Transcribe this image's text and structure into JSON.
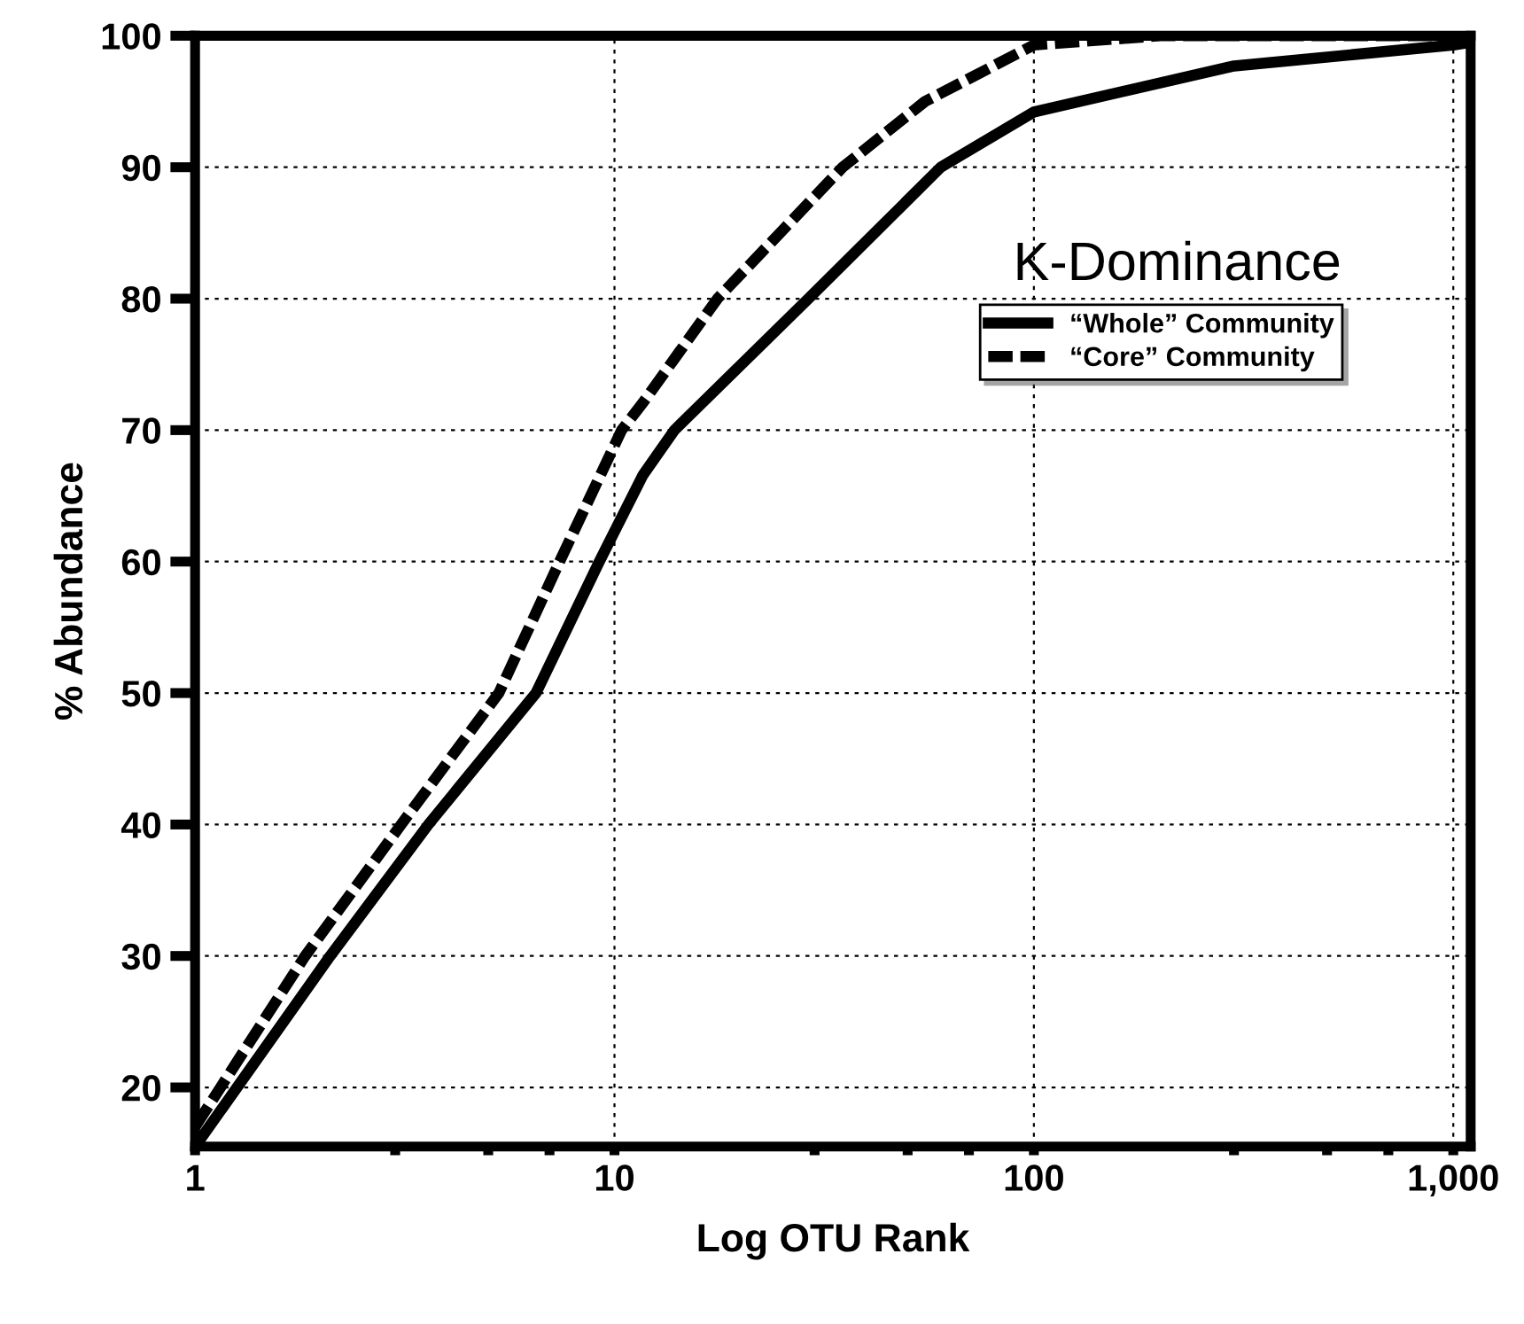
{
  "chart_data": {
    "type": "line",
    "title": "K-Dominance",
    "xlabel": "Log OTU Rank",
    "ylabel": "% Abundance",
    "log": "x",
    "xlim": [
      1,
      1100
    ],
    "ylim": [
      15.5,
      100
    ],
    "xticks": [
      1,
      {
        "value": 3,
        "label": null
      },
      {
        "value": 5,
        "label": null
      },
      {
        "value": 7,
        "label": null
      },
      10,
      {
        "value": 30,
        "label": null
      },
      {
        "value": 50,
        "label": null
      },
      {
        "value": 70,
        "label": null
      },
      100,
      {
        "value": 300,
        "label": null
      },
      {
        "value": 500,
        "label": null
      },
      {
        "value": 700,
        "label": null
      },
      {
        "value": 1000,
        "label": "1,000"
      }
    ],
    "yticks": [
      20,
      30,
      40,
      50,
      60,
      70,
      80,
      90,
      100
    ],
    "grid": true,
    "legend": "top right",
    "series": [
      {
        "name": "“Whole” Community",
        "color": "#000000",
        "line_style": "solid",
        "x": [
          1,
          2.1,
          3.6,
          6.5,
          9.2,
          11.7,
          13.9,
          29,
          60,
          100,
          300,
          1000,
          1100
        ],
        "values": [
          15.5,
          30,
          40,
          50,
          60,
          66.6,
          70,
          80,
          90,
          94.2,
          97.7,
          99.3,
          99.5
        ]
      },
      {
        "name": "“Core” Community",
        "color": "#000000",
        "line_style": "dashed",
        "x": [
          1,
          1.15,
          1.83,
          3.1,
          5.3,
          7.4,
          10.4,
          11.7,
          17.6,
          35,
          55,
          100,
          200,
          1100
        ],
        "values": [
          17,
          20,
          30,
          40,
          50,
          60,
          70,
          72.1,
          80,
          90,
          95,
          99.3,
          100,
          100
        ]
      }
    ]
  }
}
